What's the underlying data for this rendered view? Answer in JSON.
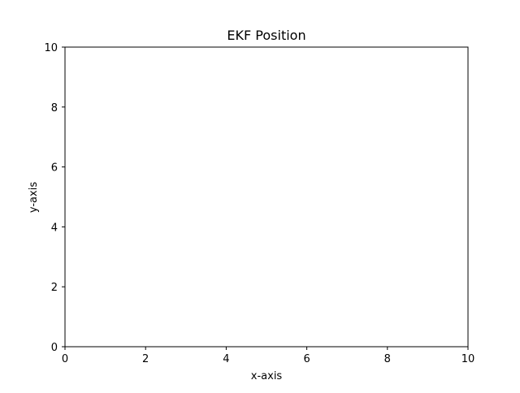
{
  "chart_data": {
    "type": "line",
    "title": "EKF Position",
    "xlabel": "x-axis",
    "ylabel": "y-axis",
    "xlim": [
      0,
      10
    ],
    "ylim": [
      0,
      10
    ],
    "xticks": [
      0,
      2,
      4,
      6,
      8,
      10
    ],
    "yticks": [
      0,
      2,
      4,
      6,
      8,
      10
    ],
    "xtick_labels": [
      "0",
      "2",
      "4",
      "6",
      "8",
      "10"
    ],
    "ytick_labels": [
      "0",
      "2",
      "4",
      "6",
      "8",
      "10"
    ],
    "grid": false,
    "series": [],
    "colors": {
      "background": "#ffffff",
      "axes": "#000000",
      "text": "#000000"
    }
  }
}
